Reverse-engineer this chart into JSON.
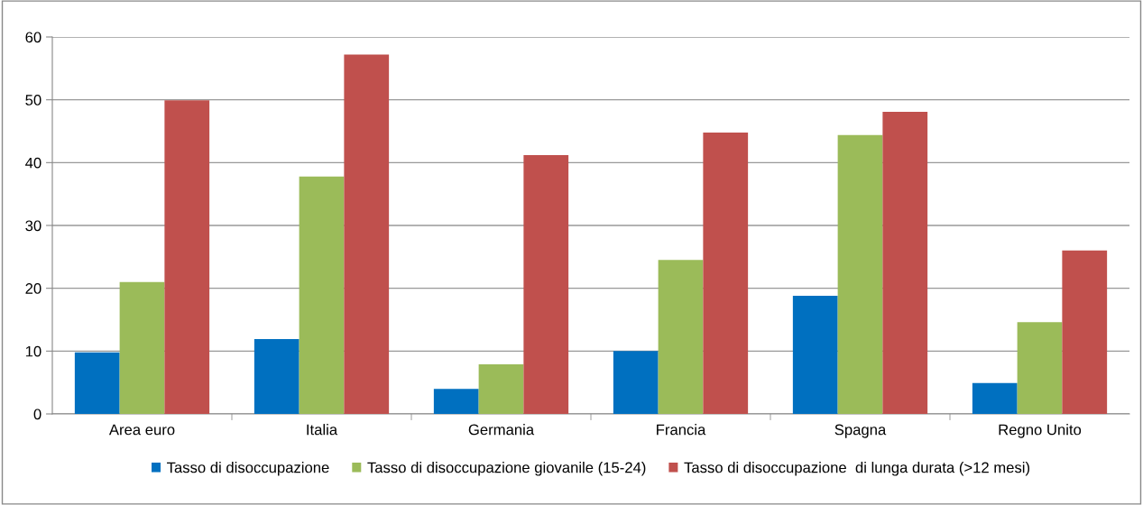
{
  "chart_data": {
    "type": "bar",
    "categories": [
      "Area euro",
      "Italia",
      "Germania",
      "Francia",
      "Spagna",
      "Regno Unito"
    ],
    "series": [
      {
        "name": "Tasso di disoccupazione",
        "color": "#0070c0",
        "values": [
          9.8,
          11.9,
          4.0,
          10.0,
          18.8,
          4.9
        ]
      },
      {
        "name": "Tasso di disoccupazione giovanile (15-24)",
        "color": "#9bbb59",
        "values": [
          21.0,
          37.8,
          7.9,
          24.5,
          44.4,
          14.6
        ]
      },
      {
        "name": "Tasso di disoccupazione  di lunga durata (>12 mesi)",
        "color": "#c0504d",
        "values": [
          49.9,
          57.2,
          41.2,
          44.8,
          48.1,
          26.0
        ]
      }
    ],
    "ylim": [
      0,
      60
    ],
    "yticks": [
      0,
      10,
      20,
      30,
      40,
      50,
      60
    ],
    "grid": "y",
    "legend": "bottom"
  }
}
